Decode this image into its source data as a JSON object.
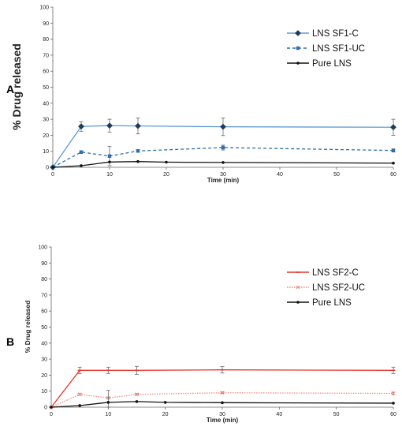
{
  "chart_data": [
    {
      "type": "line",
      "panel_label": "A",
      "xlabel": "Time (min)",
      "ylabel": "% Drug released",
      "xlim": [
        0,
        60
      ],
      "ylim": [
        0,
        100
      ],
      "x_ticks": [
        0,
        10,
        20,
        30,
        40,
        50,
        60
      ],
      "y_ticks": [
        0,
        10,
        20,
        30,
        40,
        50,
        60,
        70,
        80,
        90,
        100
      ],
      "grid": false,
      "legend_position": "top-right",
      "series": [
        {
          "name": "LNS SF1-C",
          "color": "#5b9bd5",
          "style": "solid",
          "marker": "diamond",
          "x": [
            0,
            5,
            10,
            15,
            30,
            60
          ],
          "y": [
            0,
            25.5,
            26,
            25.8,
            25.3,
            25
          ],
          "err": [
            0,
            3,
            4,
            5,
            5.5,
            5
          ]
        },
        {
          "name": "LNS SF1-UC",
          "color": "#2f6ea8",
          "style": "dashed",
          "marker": "square",
          "x": [
            0,
            5,
            10,
            15,
            30,
            60
          ],
          "y": [
            0,
            9.5,
            7,
            10.2,
            12.3,
            10.5
          ],
          "err": [
            0,
            0.8,
            6,
            0.8,
            1.5,
            1
          ]
        },
        {
          "name": "Pure LNS",
          "color": "#111111",
          "style": "solid",
          "marker": "circle",
          "x": [
            0,
            5,
            10,
            15,
            20,
            30,
            60
          ],
          "y": [
            0,
            1,
            3.3,
            3.6,
            3.2,
            3,
            2.6
          ],
          "err": [
            0,
            0,
            0,
            0,
            0,
            0,
            0
          ]
        }
      ]
    },
    {
      "type": "line",
      "panel_label": "B",
      "xlabel": "Time (min)",
      "ylabel": "% Drug released",
      "xlim": [
        0,
        60
      ],
      "ylim": [
        0,
        100
      ],
      "x_ticks": [
        0,
        10,
        20,
        30,
        40,
        50,
        60
      ],
      "y_ticks": [
        0,
        10,
        20,
        30,
        40,
        50,
        60,
        70,
        80,
        90,
        100
      ],
      "grid": false,
      "legend_position": "top-right",
      "series": [
        {
          "name": "LNS SF2-C",
          "color": "#e8362c",
          "style": "solid",
          "marker": "dash",
          "x": [
            0,
            5,
            10,
            15,
            30,
            60
          ],
          "y": [
            0,
            23,
            23,
            23,
            23.3,
            23
          ],
          "err": [
            0,
            2,
            2,
            2.5,
            2,
            2
          ]
        },
        {
          "name": "LNS SF2-UC",
          "color": "#f08a7e",
          "style": "dotted",
          "marker": "x",
          "x": [
            0,
            5,
            10,
            15,
            30,
            60
          ],
          "y": [
            0,
            8,
            5.8,
            8,
            9,
            8.6
          ],
          "err": [
            0,
            0.5,
            0.5,
            0.5,
            0.5,
            0.8
          ]
        },
        {
          "name": "Pure LNS",
          "color": "#111111",
          "style": "solid",
          "marker": "circle",
          "x": [
            0,
            5,
            10,
            15,
            20,
            30,
            60
          ],
          "y": [
            0,
            1,
            3,
            3.5,
            3,
            2.8,
            2.5
          ],
          "err": [
            0,
            0,
            7.5,
            0,
            0,
            0,
            0
          ]
        }
      ]
    }
  ]
}
